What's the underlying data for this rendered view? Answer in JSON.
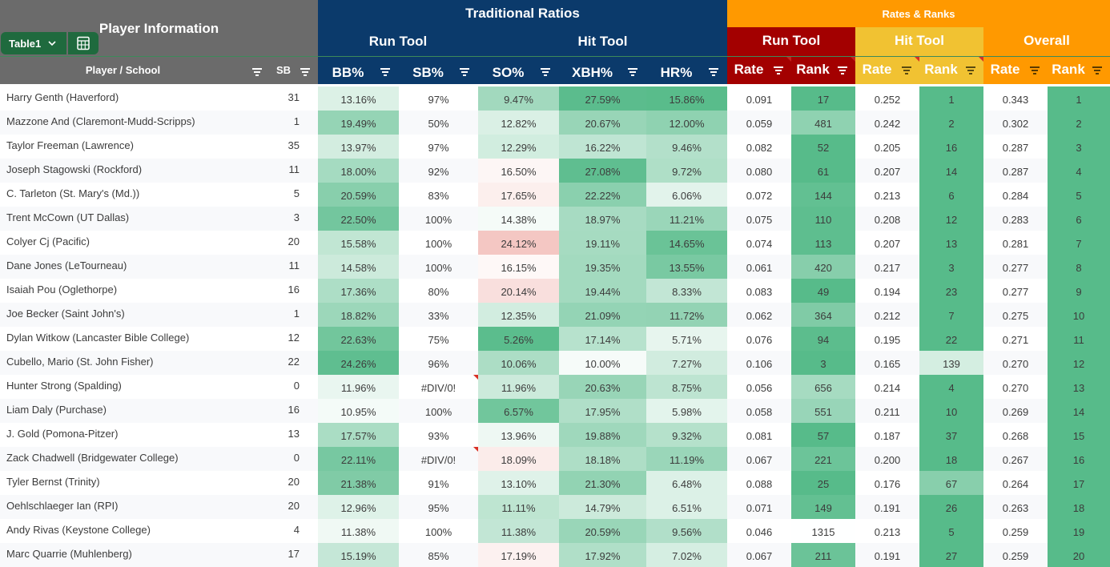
{
  "header": {
    "player_info": "Player Information",
    "traditional": "Traditional Ratios",
    "run_tool": "Run Tool",
    "hit_tool": "Hit Tool",
    "rates_ranks": "Rates & Ranks",
    "rr_run_tool": "Run Tool",
    "rr_hit_tool": "Hit Tool",
    "rr_overall": "Overall"
  },
  "table_chip": {
    "label": "Table1"
  },
  "columns": {
    "player": "Player / School",
    "sb": "SB",
    "bb": "BB%",
    "sbp": "SB%",
    "so": "SO%",
    "xbh": "XBH%",
    "hr": "HR%",
    "run_rate": "Rate",
    "run_rank": "Rank",
    "hit_rate": "Rate",
    "hit_rank": "Rank",
    "ov_rate": "Rate",
    "ov_rank": "Rank"
  },
  "colors": {
    "gray_header": "#6b6b6b",
    "navy": "#0b3a6b",
    "orange": "#ff9900",
    "dark_red": "#a30000",
    "yellow": "#f1c232",
    "green_rank": "#5cbb85"
  },
  "rows": [
    {
      "name": "Harry Genth (Haverford)",
      "sb": "31",
      "bb": "13.16%",
      "sbp": "97%",
      "so": "9.47%",
      "xbh": "27.59%",
      "hr": "15.86%",
      "rr": "0.091",
      "rk": "17",
      "hr2": "0.252",
      "hk": "1",
      "or": "0.343",
      "ok": "1"
    },
    {
      "name": "Mazzone And (Claremont-Mudd-Scripps)",
      "sb": "1",
      "bb": "19.49%",
      "sbp": "50%",
      "so": "12.82%",
      "xbh": "20.67%",
      "hr": "12.00%",
      "rr": "0.059",
      "rk": "481",
      "hr2": "0.242",
      "hk": "2",
      "or": "0.302",
      "ok": "2"
    },
    {
      "name": "Taylor Freeman (Lawrence)",
      "sb": "35",
      "bb": "13.97%",
      "sbp": "97%",
      "so": "12.29%",
      "xbh": "16.22%",
      "hr": "9.46%",
      "rr": "0.082",
      "rk": "52",
      "hr2": "0.205",
      "hk": "16",
      "or": "0.287",
      "ok": "3"
    },
    {
      "name": "Joseph Stagowski (Rockford)",
      "sb": "11",
      "bb": "18.00%",
      "sbp": "92%",
      "so": "16.50%",
      "xbh": "27.08%",
      "hr": "9.72%",
      "rr": "0.080",
      "rk": "61",
      "hr2": "0.207",
      "hk": "14",
      "or": "0.287",
      "ok": "4"
    },
    {
      "name": "C. Tarleton (St. Mary's (Md.))",
      "sb": "5",
      "bb": "20.59%",
      "sbp": "83%",
      "so": "17.65%",
      "xbh": "22.22%",
      "hr": "6.06%",
      "rr": "0.072",
      "rk": "144",
      "hr2": "0.213",
      "hk": "6",
      "or": "0.284",
      "ok": "5"
    },
    {
      "name": "Trent McCown (UT Dallas)",
      "sb": "3",
      "bb": "22.50%",
      "sbp": "100%",
      "so": "14.38%",
      "xbh": "18.97%",
      "hr": "11.21%",
      "rr": "0.075",
      "rk": "110",
      "hr2": "0.208",
      "hk": "12",
      "or": "0.283",
      "ok": "6"
    },
    {
      "name": "Colyer Cj (Pacific)",
      "sb": "20",
      "bb": "15.58%",
      "sbp": "100%",
      "so": "24.12%",
      "xbh": "19.11%",
      "hr": "14.65%",
      "rr": "0.074",
      "rk": "113",
      "hr2": "0.207",
      "hk": "13",
      "or": "0.281",
      "ok": "7"
    },
    {
      "name": "Dane Jones (LeTourneau)",
      "sb": "11",
      "bb": "14.58%",
      "sbp": "100%",
      "so": "16.15%",
      "xbh": "19.35%",
      "hr": "13.55%",
      "rr": "0.061",
      "rk": "420",
      "hr2": "0.217",
      "hk": "3",
      "or": "0.277",
      "ok": "8"
    },
    {
      "name": "Isaiah Pou (Oglethorpe)",
      "sb": "16",
      "bb": "17.36%",
      "sbp": "80%",
      "so": "20.14%",
      "xbh": "19.44%",
      "hr": "8.33%",
      "rr": "0.083",
      "rk": "49",
      "hr2": "0.194",
      "hk": "23",
      "or": "0.277",
      "ok": "9"
    },
    {
      "name": "Joe Becker (Saint John's)",
      "sb": "1",
      "bb": "18.82%",
      "sbp": "33%",
      "so": "12.35%",
      "xbh": "21.09%",
      "hr": "11.72%",
      "rr": "0.062",
      "rk": "364",
      "hr2": "0.212",
      "hk": "7",
      "or": "0.275",
      "ok": "10"
    },
    {
      "name": "Dylan Witkow (Lancaster Bible College)",
      "sb": "12",
      "bb": "22.63%",
      "sbp": "75%",
      "so": "5.26%",
      "xbh": "17.14%",
      "hr": "5.71%",
      "rr": "0.076",
      "rk": "94",
      "hr2": "0.195",
      "hk": "22",
      "or": "0.271",
      "ok": "11"
    },
    {
      "name": "Cubello, Mario (St. John Fisher)",
      "sb": "22",
      "bb": "24.26%",
      "sbp": "96%",
      "so": "10.06%",
      "xbh": "10.00%",
      "hr": "7.27%",
      "rr": "0.106",
      "rk": "3",
      "hr2": "0.165",
      "hk": "139",
      "or": "0.270",
      "ok": "12"
    },
    {
      "name": "Hunter Strong (Spalding)",
      "sb": "0",
      "bb": "11.96%",
      "sbp": "#DIV/0!",
      "so": "11.96%",
      "xbh": "20.63%",
      "hr": "8.75%",
      "rr": "0.056",
      "rk": "656",
      "hr2": "0.214",
      "hk": "4",
      "or": "0.270",
      "ok": "13"
    },
    {
      "name": "Liam Daly (Purchase)",
      "sb": "16",
      "bb": "10.95%",
      "sbp": "100%",
      "so": "6.57%",
      "xbh": "17.95%",
      "hr": "5.98%",
      "rr": "0.058",
      "rk": "551",
      "hr2": "0.211",
      "hk": "10",
      "or": "0.269",
      "ok": "14"
    },
    {
      "name": "J. Gold (Pomona-Pitzer)",
      "sb": "13",
      "bb": "17.57%",
      "sbp": "93%",
      "so": "13.96%",
      "xbh": "19.88%",
      "hr": "9.32%",
      "rr": "0.081",
      "rk": "57",
      "hr2": "0.187",
      "hk": "37",
      "or": "0.268",
      "ok": "15"
    },
    {
      "name": "Zack Chadwell (Bridgewater College)",
      "sb": "0",
      "bb": "22.11%",
      "sbp": "#DIV/0!",
      "so": "18.09%",
      "xbh": "18.18%",
      "hr": "11.19%",
      "rr": "0.067",
      "rk": "221",
      "hr2": "0.200",
      "hk": "18",
      "or": "0.267",
      "ok": "16"
    },
    {
      "name": "Tyler Bernst (Trinity)",
      "sb": "20",
      "bb": "21.38%",
      "sbp": "91%",
      "so": "13.10%",
      "xbh": "21.30%",
      "hr": "6.48%",
      "rr": "0.088",
      "rk": "25",
      "hr2": "0.176",
      "hk": "67",
      "or": "0.264",
      "ok": "17"
    },
    {
      "name": "Oehlschlaeger Ian (RPI)",
      "sb": "20",
      "bb": "12.96%",
      "sbp": "95%",
      "so": "11.11%",
      "xbh": "14.79%",
      "hr": "6.51%",
      "rr": "0.071",
      "rk": "149",
      "hr2": "0.191",
      "hk": "26",
      "or": "0.263",
      "ok": "18"
    },
    {
      "name": "Andy Rivas (Keystone College)",
      "sb": "4",
      "bb": "11.38%",
      "sbp": "100%",
      "so": "11.38%",
      "xbh": "20.59%",
      "hr": "9.56%",
      "rr": "0.046",
      "rk": "1315",
      "hr2": "0.213",
      "hk": "5",
      "or": "0.259",
      "ok": "19"
    },
    {
      "name": "Marc Quarrie (Muhlenberg)",
      "sb": "17",
      "bb": "15.19%",
      "sbp": "85%",
      "so": "17.19%",
      "xbh": "17.92%",
      "hr": "7.02%",
      "rr": "0.067",
      "rk": "211",
      "hr2": "0.191",
      "hk": "27",
      "or": "0.259",
      "ok": "20"
    }
  ]
}
